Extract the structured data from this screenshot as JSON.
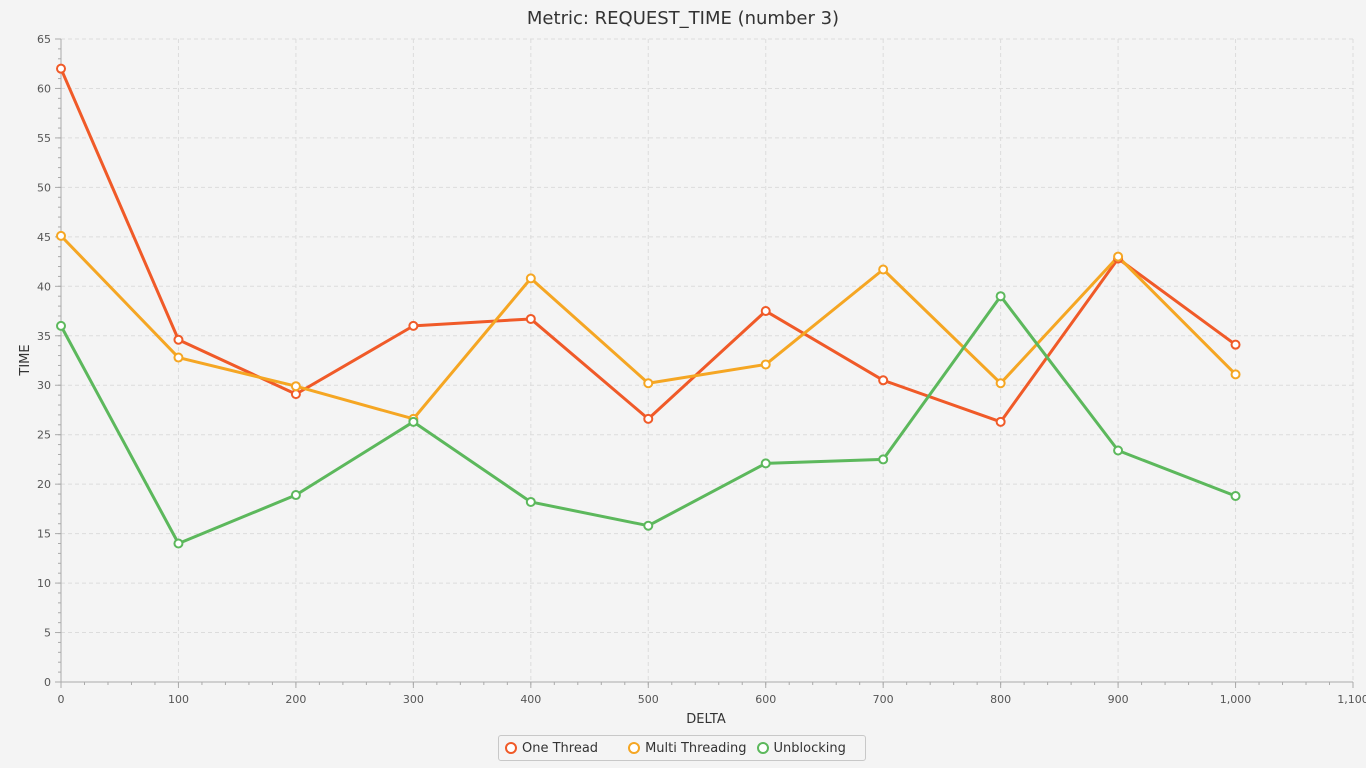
{
  "chart_data": {
    "type": "line",
    "title": "Metric: REQUEST_TIME (number 3)",
    "xlabel": "DELTA",
    "ylabel": "TIME",
    "xlim": [
      0,
      1100
    ],
    "ylim": [
      0,
      65
    ],
    "x_ticks": [
      0,
      100,
      200,
      300,
      400,
      500,
      600,
      700,
      800,
      900,
      1000,
      1100
    ],
    "x_tick_labels": [
      "0",
      "100",
      "200",
      "300",
      "400",
      "500",
      "600",
      "700",
      "800",
      "900",
      "1,000",
      "1,100"
    ],
    "y_ticks": [
      0,
      5,
      10,
      15,
      20,
      25,
      30,
      35,
      40,
      45,
      50,
      55,
      60,
      65
    ],
    "grid": true,
    "legend_position": "bottom-center",
    "x": [
      0,
      100,
      200,
      300,
      400,
      500,
      600,
      700,
      800,
      900,
      1000
    ],
    "series": [
      {
        "name": "One Thread",
        "color": "#f05a28",
        "values": [
          62.0,
          34.6,
          29.1,
          36.0,
          36.7,
          26.6,
          37.5,
          30.5,
          26.3,
          42.8,
          34.1
        ]
      },
      {
        "name": "Multi Threading",
        "color": "#f5a623",
        "values": [
          45.1,
          32.8,
          29.9,
          26.6,
          40.8,
          30.2,
          32.1,
          41.7,
          30.2,
          43.0,
          31.1
        ]
      },
      {
        "name": "Unblocking",
        "color": "#5cb85c",
        "values": [
          36.0,
          14.0,
          18.9,
          26.3,
          18.2,
          15.8,
          22.1,
          22.5,
          39.0,
          23.4,
          18.8
        ]
      }
    ]
  }
}
